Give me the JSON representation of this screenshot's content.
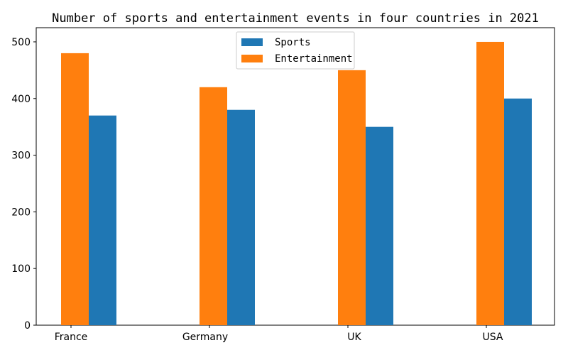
{
  "chart_data": {
    "type": "bar",
    "title": "Number of sports and entertainment events in four countries in 2021",
    "xlabel": "",
    "ylabel": "",
    "categories": [
      "France",
      "Germany",
      "UK",
      "USA"
    ],
    "series": [
      {
        "name": "Sports",
        "values": [
          370,
          380,
          350,
          400
        ],
        "color": "#1f77b4"
      },
      {
        "name": "Entertainment",
        "values": [
          480,
          420,
          450,
          500
        ],
        "color": "#ff7f0e"
      }
    ],
    "ylim": [
      0,
      525
    ],
    "yticks": [
      0,
      100,
      200,
      300,
      400,
      500
    ],
    "legend_position": "upper-center",
    "grid": false
  }
}
